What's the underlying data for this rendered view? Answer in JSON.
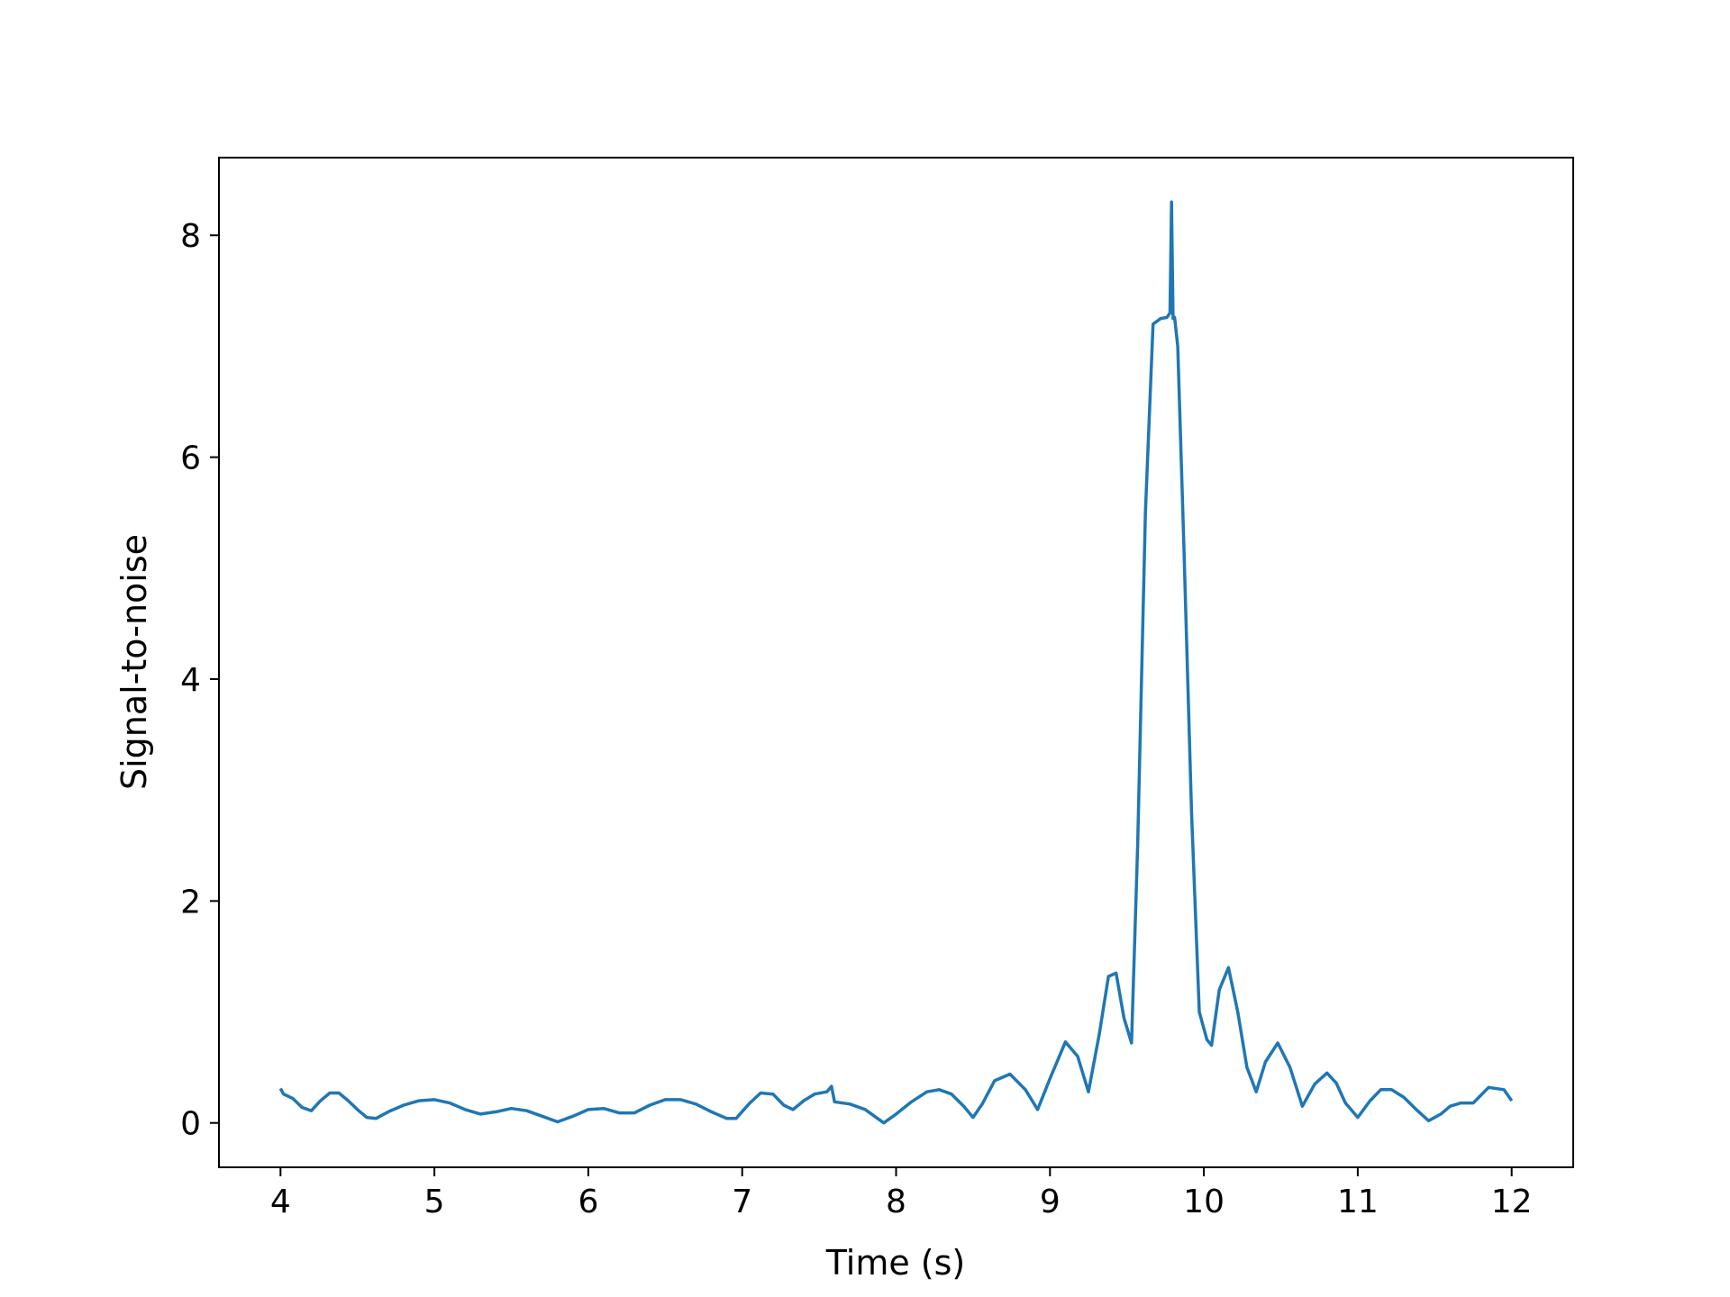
{
  "chart_data": {
    "type": "line",
    "title": "",
    "xlabel": "Time (s)",
    "ylabel": "Signal-to-noise",
    "xlim": [
      3.6,
      12.4
    ],
    "ylim": [
      -0.4,
      8.7
    ],
    "xticks": [
      4,
      5,
      6,
      7,
      8,
      9,
      10,
      11,
      12
    ],
    "yticks": [
      0,
      2,
      4,
      6,
      8
    ],
    "grid": false,
    "legend": "none",
    "color": "#1f77b4",
    "series": [
      {
        "x": [
          4.0,
          4.02,
          4.08,
          4.14,
          4.2,
          4.26,
          4.32,
          4.38,
          4.44,
          4.5,
          4.56,
          4.62,
          4.7,
          4.8,
          4.9,
          5.0,
          5.1,
          5.2,
          5.3,
          5.4,
          5.5,
          5.6,
          5.7,
          5.8,
          5.9,
          6.0,
          6.1,
          6.2,
          6.3,
          6.4,
          6.5,
          6.6,
          6.7,
          6.8,
          6.9,
          6.96,
          7.05,
          7.12,
          7.2,
          7.27,
          7.33,
          7.4,
          7.47,
          7.55,
          7.58,
          7.6,
          7.7,
          7.8,
          7.92,
          8.0,
          8.1,
          8.2,
          8.28,
          8.36,
          8.44,
          8.5,
          8.56,
          8.64,
          8.74,
          8.84,
          8.92,
          9.0,
          9.1,
          9.18,
          9.25,
          9.32,
          9.38,
          9.43,
          9.48,
          9.53,
          9.57,
          9.62,
          9.67,
          9.72,
          9.76,
          9.78,
          9.79,
          9.8,
          9.81,
          9.83,
          9.87,
          9.92,
          9.97,
          10.02,
          10.05,
          10.1,
          10.16,
          10.22,
          10.28,
          10.34,
          10.4,
          10.48,
          10.56,
          10.64,
          10.72,
          10.8,
          10.86,
          10.92,
          11.0,
          11.08,
          11.15,
          11.22,
          11.3,
          11.38,
          11.46,
          11.54,
          11.6,
          11.67,
          11.75,
          11.85,
          11.95,
          12.0
        ],
        "y": [
          0.31,
          0.26,
          0.22,
          0.14,
          0.11,
          0.2,
          0.27,
          0.27,
          0.2,
          0.12,
          0.05,
          0.04,
          0.1,
          0.16,
          0.2,
          0.21,
          0.18,
          0.12,
          0.08,
          0.1,
          0.13,
          0.11,
          0.06,
          0.01,
          0.06,
          0.12,
          0.13,
          0.09,
          0.09,
          0.16,
          0.21,
          0.21,
          0.17,
          0.1,
          0.04,
          0.04,
          0.18,
          0.27,
          0.26,
          0.16,
          0.12,
          0.2,
          0.26,
          0.28,
          0.33,
          0.19,
          0.17,
          0.12,
          0.0,
          0.08,
          0.19,
          0.28,
          0.3,
          0.26,
          0.15,
          0.05,
          0.17,
          0.38,
          0.44,
          0.3,
          0.12,
          0.4,
          0.73,
          0.6,
          0.28,
          0.8,
          1.32,
          1.35,
          0.95,
          0.72,
          2.5,
          5.5,
          7.2,
          7.25,
          7.26,
          7.3,
          8.3,
          7.25,
          7.26,
          7.0,
          5.2,
          2.8,
          1.0,
          0.75,
          0.7,
          1.2,
          1.4,
          1.0,
          0.5,
          0.28,
          0.55,
          0.72,
          0.5,
          0.15,
          0.35,
          0.45,
          0.36,
          0.18,
          0.05,
          0.2,
          0.3,
          0.3,
          0.23,
          0.12,
          0.02,
          0.08,
          0.15,
          0.18,
          0.18,
          0.32,
          0.3,
          0.2
        ]
      }
    ]
  }
}
